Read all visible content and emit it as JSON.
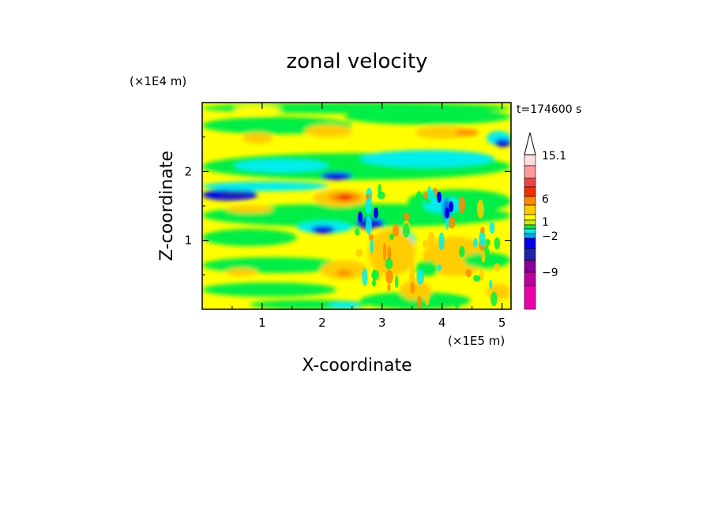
{
  "chart_data": {
    "type": "heatmap",
    "title": "zonal velocity",
    "xlabel": "X-coordinate",
    "ylabel": "Z-coordinate",
    "x_unit": "(×1E5 m)",
    "y_unit": "(×1E4 m)",
    "time_label": "t=174600 s",
    "xlim": [
      0,
      5.15
    ],
    "ylim": [
      0,
      3.0
    ],
    "x_ticks": [
      "1",
      "2",
      "3",
      "4",
      "5"
    ],
    "y_ticks": [
      "1",
      "2"
    ],
    "colorbar": {
      "levels": [
        -15,
        -12,
        -9,
        -6,
        -4,
        -2,
        -1,
        0,
        1,
        2,
        4,
        6,
        9,
        12,
        15.1
      ],
      "colors": [
        "#ee00aa",
        "#bb0099",
        "#880099",
        "#2222aa",
        "#0000ee",
        "#00aaee",
        "#00eeee",
        "#00ee44",
        "#ccee00",
        "#ffff00",
        "#ffcc00",
        "#ff8800",
        "#ee3300",
        "#ee4444",
        "#ff9999",
        "#ffdddd"
      ],
      "tick_labels": [
        "15.1",
        "6",
        "1",
        "-2",
        "-9"
      ]
    },
    "field_bands": [
      {
        "z_range": [
          2.7,
          3.0
        ],
        "dominant": "green/yellow"
      },
      {
        "z_range": [
          2.3,
          2.7
        ],
        "dominant": "yellow/orange"
      },
      {
        "z_range": [
          1.9,
          2.3
        ],
        "dominant": "cyan/blue"
      },
      {
        "z_range": [
          1.4,
          1.9
        ],
        "dominant": "green/orange"
      },
      {
        "z_range": [
          0.9,
          1.4
        ],
        "dominant": "yellow/blue"
      },
      {
        "z_range": [
          0.0,
          0.9
        ],
        "dominant": "yellow/green/orange"
      }
    ]
  }
}
